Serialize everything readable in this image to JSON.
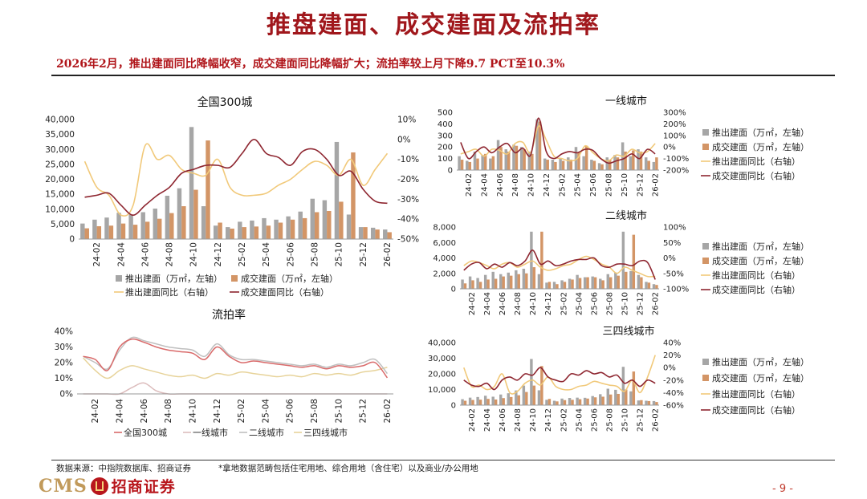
{
  "header": {
    "title": "推盘建面、成交建面及流拍率",
    "subtitle": "2026年2月，推出建面同比降幅收窄，成交建面同比降幅扩大；流拍率较上月下降9.7 PCT至10.3%"
  },
  "footer": {
    "source": "数据来源：中指院数据库、招商证券",
    "note": "*拿地数据范畴包括住宅用地、综合用地（含住宅）以及商业/办公用地",
    "logo_latin": "CMS",
    "logo_cn": "招商证券",
    "page": "- 9 -"
  },
  "colors": {
    "pushed": "#a6a6a6",
    "traded": "#d39566",
    "pushed_yoy": "#f1c97a",
    "traded_yoy": "#8e2630",
    "rate_all": "#d96a6a",
    "rate_t1": "#dcbcbc",
    "rate_t2": "#bfbfbf",
    "rate_t34": "#e7d39a"
  },
  "chart_data": [
    {
      "id": "national",
      "type": "bar",
      "title": "全国300城",
      "categories": [
        "24-01",
        "24-02",
        "24-03",
        "24-04",
        "24-05",
        "24-06",
        "24-07",
        "24-08",
        "24-09",
        "24-10",
        "24-11",
        "24-12",
        "25-01",
        "25-02",
        "25-03",
        "25-04",
        "25-05",
        "25-06",
        "25-07",
        "25-08",
        "25-09",
        "25-10",
        "25-11",
        "25-12",
        "26-01",
        "26-02"
      ],
      "tick_labels": [
        "24-02",
        "24-04",
        "24-06",
        "24-08",
        "24-10",
        "24-12",
        "25-02",
        "25-04",
        "25-06",
        "25-08",
        "25-10",
        "25-12",
        "26-02"
      ],
      "ylim_left": [
        0,
        40000
      ],
      "ylim_right": [
        -50,
        10
      ],
      "yticks_left": [
        "0",
        "5,000",
        "10,000",
        "15,000",
        "20,000",
        "25,000",
        "30,000",
        "35,000",
        "40,000"
      ],
      "yticks_right": [
        "-50%",
        "-40%",
        "-30%",
        "-20%",
        "-10%",
        "0%",
        "10%"
      ],
      "series": [
        {
          "name": "推出建面（万㎡，左轴）",
          "kind": "bar",
          "color_key": "pushed",
          "values": [
            5200,
            6500,
            7200,
            8800,
            8200,
            9000,
            10200,
            14500,
            17000,
            37500,
            11000,
            4500,
            4000,
            5800,
            6200,
            7000,
            6500,
            7600,
            9200,
            13500,
            13000,
            32500,
            8200,
            4000,
            3800,
            3200
          ]
        },
        {
          "name": "成交建面（万㎡，左轴）",
          "kind": "bar",
          "color_key": "traded",
          "values": [
            3600,
            4300,
            4500,
            5200,
            4800,
            5800,
            6800,
            8700,
            11000,
            16500,
            33000,
            5500,
            3500,
            4000,
            4200,
            4500,
            5500,
            6500,
            7000,
            9000,
            9400,
            12500,
            29000,
            4000,
            3200,
            2300
          ]
        },
        {
          "name": "推出建面同比（右轴）",
          "kind": "line",
          "color_key": "pushed_yoy",
          "values": [
            -11,
            -24,
            -28,
            -38,
            -33,
            -3,
            -10,
            -8,
            -15,
            -17,
            -18,
            -10,
            -24,
            -28,
            -28,
            -27,
            -23,
            -20,
            -15,
            -11,
            -13,
            -18,
            -10,
            -23,
            -15,
            -7
          ]
        },
        {
          "name": "成交建面同比（右轴）",
          "kind": "line",
          "color_key": "traded_yoy",
          "values": [
            -29,
            -28,
            -27,
            -33,
            -38,
            -33,
            -28,
            -24,
            -17,
            -15,
            -13,
            -13,
            -14,
            -7,
            0,
            -7,
            -9,
            -13,
            -6,
            -5,
            -10,
            -18,
            -16,
            -25,
            -31,
            -32
          ]
        }
      ]
    },
    {
      "id": "tier1",
      "type": "bar",
      "title": "一线城市",
      "categories": [
        "24-01",
        "24-02",
        "24-03",
        "24-04",
        "24-05",
        "24-06",
        "24-07",
        "24-08",
        "24-09",
        "24-10",
        "24-11",
        "24-12",
        "25-01",
        "25-02",
        "25-03",
        "25-04",
        "25-05",
        "25-06",
        "25-07",
        "25-08",
        "25-09",
        "25-10",
        "25-11",
        "25-12",
        "26-01",
        "26-02"
      ],
      "tick_labels": [
        "24-02",
        "24-04",
        "24-06",
        "24-08",
        "24-10",
        "24-12",
        "25-02",
        "25-04",
        "25-06",
        "25-08",
        "25-10",
        "25-12",
        "26-02"
      ],
      "ylim_left": [
        0,
        500
      ],
      "ylim_right": [
        -200,
        300
      ],
      "yticks_left": [
        "0",
        "100",
        "200",
        "300",
        "400",
        "500"
      ],
      "yticks_right": [
        "-200%",
        "-100%",
        "0%",
        "100%",
        "200%",
        "300%"
      ],
      "series": [
        {
          "name": "推出建面（万㎡，左轴）",
          "kind": "bar",
          "color_key": "pushed",
          "values": [
            120,
            80,
            160,
            130,
            100,
            260,
            180,
            220,
            200,
            160,
            440,
            100,
            90,
            100,
            110,
            200,
            120,
            90,
            60,
            110,
            130,
            240,
            120,
            180,
            110,
            70
          ]
        },
        {
          "name": "成交建面（万㎡，左轴）",
          "kind": "bar",
          "color_key": "traded",
          "values": [
            90,
            70,
            100,
            140,
            120,
            200,
            160,
            210,
            180,
            140,
            420,
            90,
            70,
            80,
            90,
            150,
            210,
            80,
            50,
            90,
            110,
            160,
            170,
            160,
            80,
            110
          ]
        },
        {
          "name": "推出建面同比（右轴）",
          "kind": "line",
          "color_key": "pushed_yoy",
          "values": [
            -60,
            -40,
            -20,
            -80,
            -20,
            -30,
            -60,
            30,
            40,
            -50,
            180,
            60,
            -80,
            -100,
            -120,
            -100,
            10,
            -50,
            -100,
            -120,
            -70,
            -80,
            -20,
            -50,
            -40,
            30
          ]
        },
        {
          "name": "成交建面同比（右轴）",
          "kind": "line",
          "color_key": "traded_yoy",
          "values": [
            40,
            -100,
            -40,
            0,
            -50,
            0,
            30,
            -50,
            -10,
            -70,
            250,
            -40,
            -100,
            -60,
            -40,
            -50,
            -20,
            -30,
            -100,
            -140,
            -120,
            -100,
            -60,
            -100,
            -20,
            -60
          ]
        }
      ]
    },
    {
      "id": "tier2",
      "type": "bar",
      "title": "二线城市",
      "categories": [
        "24-01",
        "24-02",
        "24-03",
        "24-04",
        "24-05",
        "24-06",
        "24-07",
        "24-08",
        "24-09",
        "24-10",
        "24-11",
        "24-12",
        "25-01",
        "25-02",
        "25-03",
        "25-04",
        "25-05",
        "25-06",
        "25-07",
        "25-08",
        "25-09",
        "25-10",
        "25-11",
        "25-12",
        "26-01",
        "26-02"
      ],
      "tick_labels": [
        "24-02",
        "24-04",
        "24-06",
        "24-08",
        "24-10",
        "24-12",
        "25-02",
        "25-04",
        "25-06",
        "25-08",
        "25-10",
        "25-12",
        "26-02"
      ],
      "ylim_left": [
        0,
        8000
      ],
      "ylim_right": [
        -100,
        100
      ],
      "yticks_left": [
        "0",
        "2,000",
        "4,000",
        "6,000",
        "8,000"
      ],
      "yticks_right": [
        "-100%",
        "-50%",
        "0%",
        "50%",
        "100%"
      ],
      "series": [
        {
          "name": "推出建面（万㎡，左轴）",
          "kind": "bar",
          "color_key": "pushed",
          "values": [
            1200,
            1600,
            1400,
            1800,
            2200,
            1900,
            2100,
            2400,
            2600,
            7400,
            1900,
            800,
            900,
            1100,
            1300,
            1800,
            1500,
            1600,
            1300,
            1900,
            2100,
            7400,
            2300,
            1800,
            900,
            600
          ]
        },
        {
          "name": "成交建面（万㎡，左轴）",
          "kind": "bar",
          "color_key": "traded",
          "values": [
            700,
            1100,
            900,
            1200,
            1300,
            1600,
            1700,
            1900,
            2000,
            2800,
            7400,
            900,
            600,
            900,
            1200,
            1400,
            1500,
            1500,
            1100,
            1500,
            1700,
            2200,
            7000,
            1500,
            800,
            500
          ]
        },
        {
          "name": "推出建面同比（右轴）",
          "kind": "line",
          "color_key": "pushed_yoy",
          "values": [
            -25,
            -10,
            -15,
            -25,
            -35,
            -20,
            -15,
            -30,
            -20,
            -10,
            -30,
            -40,
            -35,
            -25,
            -20,
            -5,
            5,
            -5,
            -20,
            -30,
            -50,
            -30,
            -40,
            -50,
            -60,
            -60
          ]
        },
        {
          "name": "成交建面同比（右轴）",
          "kind": "line",
          "color_key": "traded_yoy",
          "values": [
            -40,
            -20,
            -15,
            -35,
            -20,
            -30,
            -15,
            -25,
            -10,
            25,
            -20,
            -10,
            -25,
            -20,
            -10,
            -5,
            -5,
            0,
            -25,
            -30,
            -20,
            -20,
            -25,
            -10,
            -15,
            -70
          ]
        }
      ]
    },
    {
      "id": "tier34",
      "type": "bar",
      "title": "三四线城市",
      "categories": [
        "24-01",
        "24-02",
        "24-03",
        "24-04",
        "24-05",
        "24-06",
        "24-07",
        "24-08",
        "24-09",
        "24-10",
        "24-11",
        "24-12",
        "25-01",
        "25-02",
        "25-03",
        "25-04",
        "25-05",
        "25-06",
        "25-07",
        "25-08",
        "25-09",
        "25-10",
        "25-11",
        "25-12",
        "26-01",
        "26-02"
      ],
      "tick_labels": [
        "24-02",
        "24-04",
        "24-06",
        "24-08",
        "24-10",
        "24-12",
        "25-02",
        "25-04",
        "25-06",
        "25-08",
        "25-10",
        "25-12",
        "26-02"
      ],
      "ylim_left": [
        0,
        40000
      ],
      "ylim_right": [
        -60,
        40
      ],
      "yticks_left": [
        "0",
        "10,000",
        "20,000",
        "30,000",
        "40,000"
      ],
      "yticks_right": [
        "-60%",
        "-40%",
        "-20%",
        "0%",
        "20%",
        "40%"
      ],
      "series": [
        {
          "name": "推出建面（万㎡，左轴）",
          "kind": "bar",
          "color_key": "pushed",
          "values": [
            3800,
            4800,
            5200,
            6000,
            5400,
            6800,
            7600,
            9400,
            12500,
            29500,
            9500,
            3400,
            2800,
            4200,
            4600,
            4800,
            4700,
            5800,
            7000,
            10500,
            9800,
            24500,
            8800,
            3000,
            2800,
            2600
          ]
        },
        {
          "name": "成交建面（万㎡，左轴）",
          "kind": "bar",
          "color_key": "traded",
          "values": [
            2800,
            3300,
            3500,
            4000,
            3600,
            4500,
            5200,
            6300,
            8400,
            12500,
            25000,
            4000,
            2400,
            3200,
            3400,
            3800,
            4200,
            5000,
            5400,
            6800,
            7200,
            10000,
            21500,
            3200,
            2600,
            2000
          ]
        },
        {
          "name": "推出建面同比（右轴）",
          "kind": "line",
          "color_key": "pushed_yoy",
          "values": [
            0,
            -30,
            -28,
            -35,
            -30,
            -10,
            -40,
            -38,
            -25,
            -20,
            -28,
            -15,
            -30,
            -35,
            -35,
            -30,
            -28,
            -22,
            -25,
            -28,
            -30,
            -38,
            -20,
            -40,
            -15,
            20
          ]
        },
        {
          "name": "成交建面同比（右轴）",
          "kind": "line",
          "color_key": "traded_yoy",
          "values": [
            -20,
            -28,
            -30,
            -25,
            -35,
            -20,
            -15,
            -20,
            -10,
            -12,
            0,
            -15,
            -20,
            -22,
            -10,
            -12,
            -5,
            -10,
            -8,
            -15,
            -12,
            -25,
            -20,
            -30,
            -20,
            -25
          ]
        }
      ]
    },
    {
      "id": "auction_rate",
      "type": "line",
      "title": "流拍率",
      "categories": [
        "24-01",
        "24-02",
        "24-03",
        "24-04",
        "24-05",
        "24-06",
        "24-07",
        "24-08",
        "24-09",
        "24-10",
        "24-11",
        "24-12",
        "25-01",
        "25-02",
        "25-03",
        "25-04",
        "25-05",
        "25-06",
        "25-07",
        "25-08",
        "25-09",
        "25-10",
        "25-11",
        "25-12",
        "26-01",
        "26-02"
      ],
      "tick_labels": [
        "24-02",
        "24-04",
        "24-06",
        "24-08",
        "24-10",
        "24-12",
        "25-02",
        "25-04",
        "25-06",
        "25-08",
        "25-10",
        "25-12",
        "26-02"
      ],
      "ylim": [
        0,
        40
      ],
      "yticks": [
        "0%",
        "10%",
        "20%",
        "30%",
        "40%"
      ],
      "series": [
        {
          "name": "全国300城",
          "color_key": "rate_all",
          "values": [
            24,
            22,
            15,
            30,
            35,
            33,
            30,
            28,
            27,
            26,
            22,
            30,
            24,
            20,
            21,
            20,
            19,
            18,
            17,
            18,
            16,
            18,
            17,
            18,
            20,
            10.3
          ]
        },
        {
          "name": "一线城市",
          "color_key": "rate_t1",
          "values": [
            0,
            0,
            0,
            0,
            4,
            7,
            2,
            0,
            0,
            0,
            0,
            0,
            0,
            0,
            0,
            0,
            0,
            0,
            0,
            0,
            0,
            0,
            0,
            0,
            0,
            0
          ]
        },
        {
          "name": "二线城市",
          "color_key": "rate_t2",
          "values": [
            24,
            20,
            16,
            28,
            36,
            34,
            32,
            30,
            29,
            28,
            24,
            32,
            25,
            22,
            22,
            21,
            20,
            19,
            18,
            19,
            17,
            19,
            18,
            20,
            22,
            13
          ]
        },
        {
          "name": "三四线城市",
          "color_key": "rate_t34",
          "values": [
            23,
            15,
            10,
            15,
            18,
            16,
            14,
            12,
            11,
            12,
            10,
            13,
            12,
            14,
            13,
            12,
            11,
            12,
            11,
            13,
            12,
            13,
            12,
            14,
            15,
            17
          ]
        }
      ]
    }
  ],
  "legend_texts": {
    "pushed": "推出建面（万㎡，左轴）",
    "traded": "成交建面（万㎡，左轴）",
    "pushed_yoy": "推出建面同比（右轴）",
    "traded_yoy": "成交建面同比（右轴）"
  }
}
